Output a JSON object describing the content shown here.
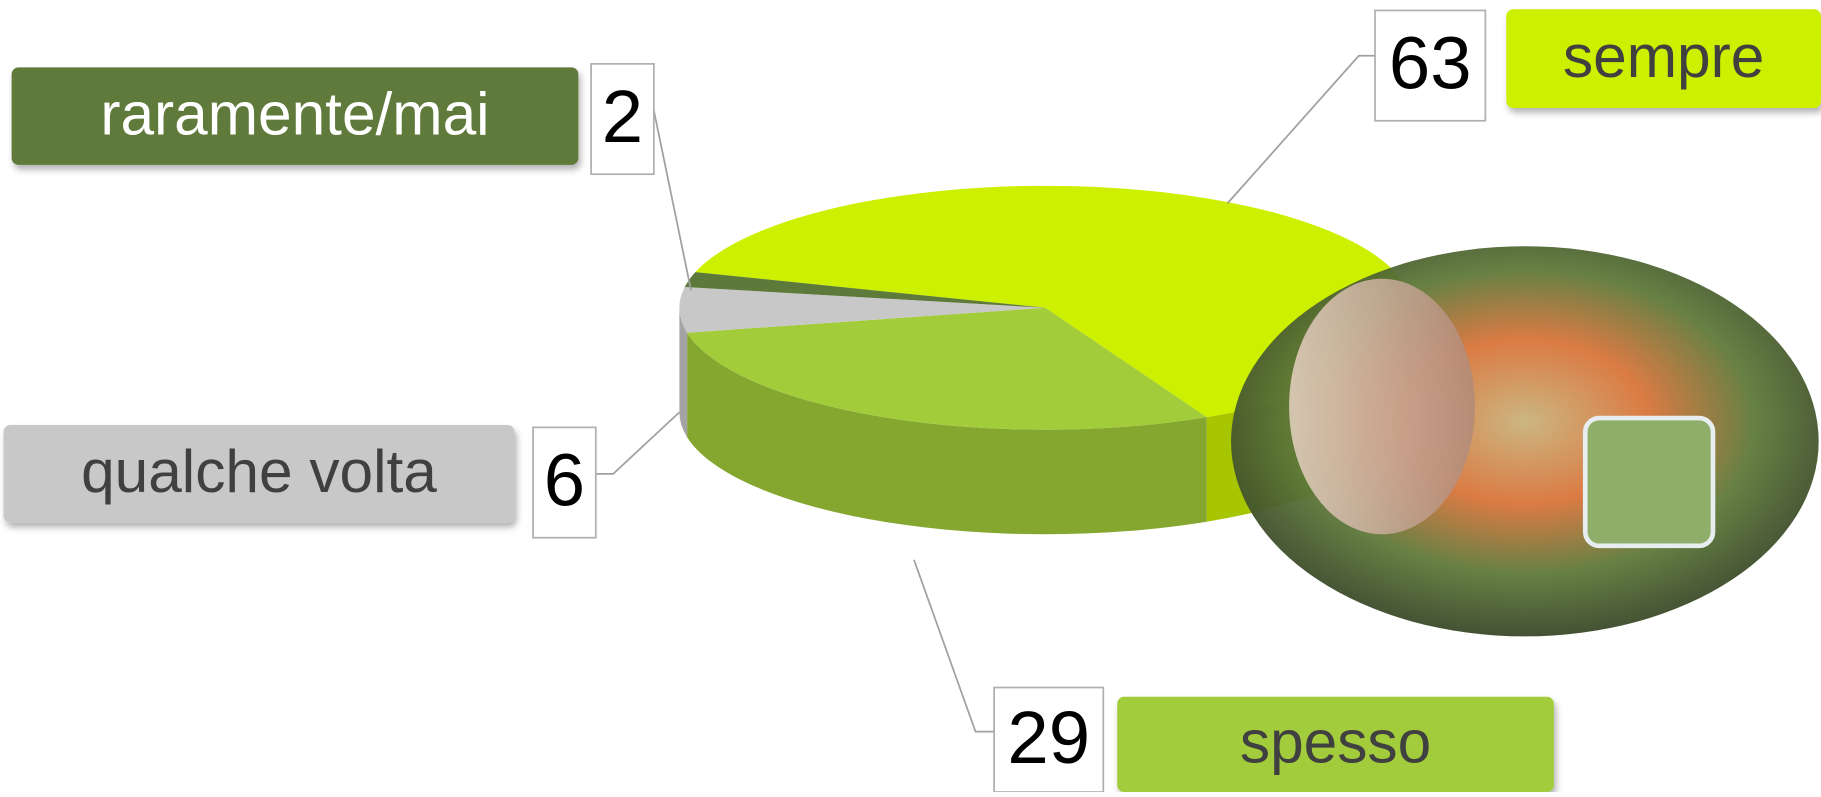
{
  "chart_data": {
    "type": "pie",
    "categories": [
      "sempre",
      "spesso",
      "qualche volta",
      "raramente/mai"
    ],
    "values": [
      63,
      29,
      6,
      2
    ],
    "colors": [
      "#ccf000",
      "#a2cc3a",
      "#c8c8c8",
      "#5e7a3a"
    ]
  }
}
